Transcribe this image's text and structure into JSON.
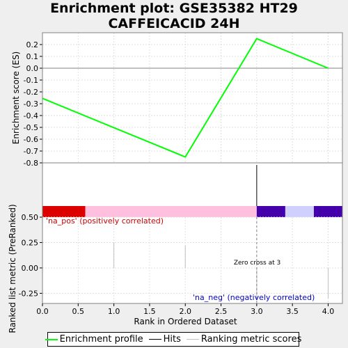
{
  "title": "Enrichment plot: GSE35382 HT29 CAFFEICACID 24H",
  "chart_data": [
    {
      "type": "line",
      "name": "enrichment-profile",
      "ylabel": "Enrichment score (ES)",
      "xlim": [
        0,
        4.2
      ],
      "ylim": [
        -0.8,
        0.3
      ],
      "yticks": [
        0.2,
        0.1,
        0.0,
        -0.1,
        -0.2,
        -0.3,
        -0.4,
        -0.5,
        -0.6,
        -0.7,
        -0.8
      ],
      "ytick_labels": [
        "0.2",
        "0.1",
        "0.0",
        "-0.1",
        "-0.2",
        "-0.3",
        "-0.4",
        "-0.5",
        "-0.6",
        "-0.7",
        "-0.8"
      ],
      "zero_line": 0.0,
      "grid": true,
      "series": [
        {
          "color": "#00ff00",
          "x": [
            0,
            2,
            3,
            4
          ],
          "y": [
            -0.255,
            -0.75,
            0.25,
            0.0
          ]
        }
      ],
      "hits": [
        3
      ]
    },
    {
      "type": "bar",
      "name": "ranking-metric",
      "xlabel": "Rank in Ordered Dataset",
      "ylabel": "Ranked list metric (PreRanked)",
      "xlim": [
        0,
        4.2
      ],
      "ylim": [
        -0.35,
        0.5
      ],
      "yticks": [
        0.5,
        0.25,
        0.0,
        -0.25
      ],
      "ytick_labels": [
        "0.50",
        "0.25",
        "0.00",
        "-0.25"
      ],
      "xticks": [
        0,
        0.5,
        1,
        1.5,
        2,
        2.5,
        3,
        3.5,
        4
      ],
      "xtick_labels": [
        "0.0",
        "0.5",
        "1.0",
        "1.5",
        "2.0",
        "2.5",
        "3.0",
        "3.5",
        "4.0"
      ],
      "grid": true,
      "bars": [
        {
          "x": 1,
          "value": 0.25
        },
        {
          "x": 2,
          "value": 0.22
        },
        {
          "x": 3,
          "value": -0.3
        },
        {
          "x": 4,
          "value": -0.3
        }
      ],
      "heat_bands": [
        {
          "from": 0,
          "to": 0.6,
          "color": "#dd0000"
        },
        {
          "from": 0.6,
          "to": 3.0,
          "color": "#ffc0e0"
        },
        {
          "from": 3.0,
          "to": 3.4,
          "color": "#4400aa"
        },
        {
          "from": 3.4,
          "to": 3.8,
          "color": "#d0d0ff"
        },
        {
          "from": 3.8,
          "to": 4.2,
          "color": "#4400aa"
        }
      ],
      "zero_cross_x": 3,
      "annotations": {
        "pos": "'na_pos' (positively correlated)",
        "neg": "'na_neg' (negatively correlated)",
        "zero_cross": "Zero cross at 3"
      },
      "pos_color": "#cc0000",
      "neg_color": "#0000cc"
    }
  ],
  "legend": {
    "items": [
      {
        "label": "Enrichment profile",
        "color": "#00ff00"
      },
      {
        "label": "Hits",
        "color": "#000000"
      },
      {
        "label": "Ranking metric scores",
        "color": "#c0c0c0"
      }
    ]
  }
}
